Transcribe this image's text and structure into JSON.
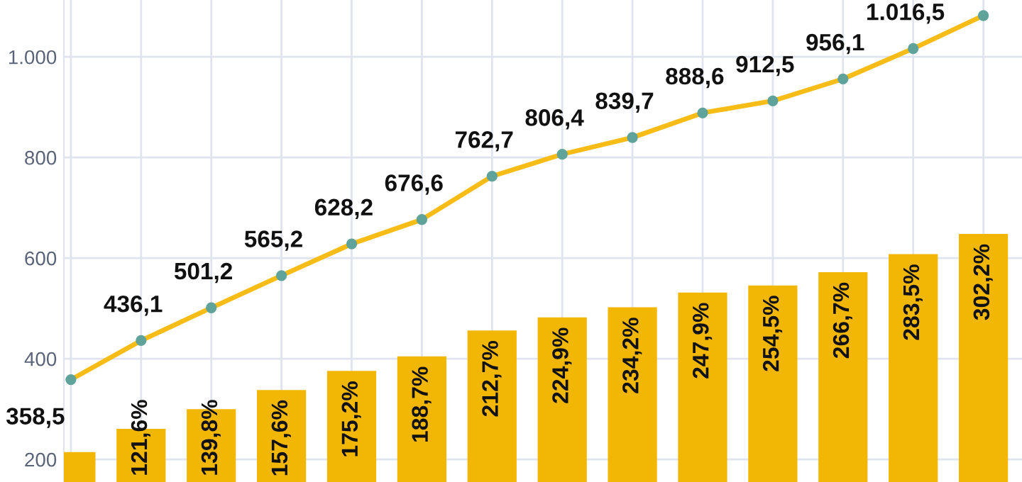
{
  "chart_data": {
    "type": "bar",
    "categories": [
      null,
      null,
      null,
      null,
      null,
      null,
      null,
      null,
      null,
      null,
      null,
      null,
      null,
      null
    ],
    "series": [
      {
        "axis": "y2",
        "color": "#f2b705",
        "values": [
          100,
          121.6,
          139.8,
          157.6,
          175.2,
          188.7,
          212.7,
          224.9,
          234.2,
          247.9,
          254.5,
          266.7,
          283.5,
          302.2
        ],
        "value_labels": [
          null,
          "121,6%",
          "139,8%",
          "157,6%",
          "175,2%",
          "188,7%",
          "212,7%",
          "224,9%",
          "234,2%",
          "247,9%",
          "254,5%",
          "266,7%",
          "283,5%",
          "302,2%"
        ]
      },
      {
        "type": "line",
        "color": "#f7bd16",
        "marker": "circle",
        "values": [
          358.5,
          436.1,
          501.2,
          565.2,
          628.2,
          676.6,
          762.7,
          806.4,
          839.7,
          888.6,
          912.5,
          956.1,
          1016.5,
          1082
        ],
        "value_labels": [
          "358,5",
          "436,1",
          "501,2",
          "565,2",
          "628,2",
          "676,6",
          "762,7",
          "806,4",
          "839,7",
          "888,6",
          "912,5",
          "956,1",
          "1.016,5",
          null
        ]
      }
    ],
    "ylim": [
      155,
      1113
    ],
    "yticks": [
      {
        "value": 200,
        "label": "200"
      },
      {
        "value": 400,
        "label": "400"
      },
      {
        "value": 600,
        "label": "600"
      },
      {
        "value": 800,
        "label": "800"
      },
      {
        "value": 1000,
        "label": "1.000"
      }
    ],
    "y2lim": [
      72.3,
      519
    ],
    "tick_labels": "y",
    "grid": true,
    "legend": false
  }
}
